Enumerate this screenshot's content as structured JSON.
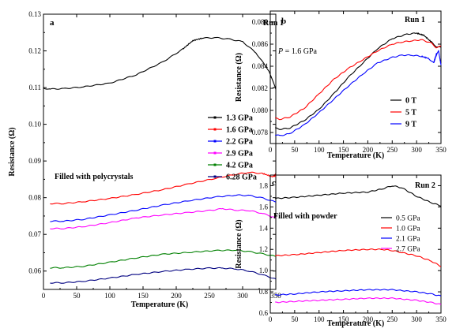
{
  "chart_data": [
    {
      "type": "line",
      "panel": "a",
      "run_label": "Run 1",
      "annotation": "Filled with polycrystals",
      "xlabel": "Temperature (K)",
      "ylabel": "Resistance (Ω)",
      "xlim": [
        0,
        350
      ],
      "ylim": [
        0.055,
        0.13
      ],
      "xticks": [
        0,
        50,
        100,
        150,
        200,
        250,
        300,
        350
      ],
      "yticks": [
        0.06,
        0.07,
        0.08,
        0.09,
        0.1,
        0.11,
        0.12,
        0.13
      ],
      "ytick_labels": [
        "0.06",
        "0.07",
        "0.08",
        "0.09",
        "0.10",
        "0.11",
        "0.12",
        "0.13"
      ],
      "legend_position": "right",
      "series": [
        {
          "name": "1.3 GPa",
          "color": "#000000",
          "x": [
            0,
            10,
            30,
            60,
            100,
            140,
            180,
            210,
            225,
            240,
            260,
            280,
            300,
            320,
            340,
            350
          ],
          "y": [
            0.1098,
            0.1096,
            0.1097,
            0.1102,
            0.1112,
            0.1135,
            0.117,
            0.1205,
            0.1228,
            0.1235,
            0.1236,
            0.1232,
            0.1225,
            0.1195,
            0.1145,
            0.1095
          ]
        },
        {
          "name": "1.6 GPa",
          "color": "#ff0000",
          "x": [
            10,
            30,
            60,
            100,
            140,
            180,
            220,
            260,
            290,
            310,
            330,
            345,
            350
          ],
          "y": [
            0.0784,
            0.0784,
            0.0789,
            0.0798,
            0.0809,
            0.0822,
            0.0838,
            0.0853,
            0.0864,
            0.0869,
            0.0866,
            0.0857,
            0.0862
          ]
        },
        {
          "name": "2.2 GPa",
          "color": "#0000ff",
          "x": [
            10,
            30,
            60,
            100,
            140,
            180,
            220,
            260,
            290,
            310,
            330,
            350
          ],
          "y": [
            0.0736,
            0.0736,
            0.0741,
            0.0753,
            0.0766,
            0.078,
            0.0792,
            0.0802,
            0.0807,
            0.0806,
            0.0799,
            0.0788
          ]
        },
        {
          "name": "2.9 GPa",
          "color": "#ff00ff",
          "x": [
            10,
            30,
            60,
            100,
            140,
            180,
            220,
            250,
            270,
            290,
            310,
            330,
            350
          ],
          "y": [
            0.0716,
            0.0716,
            0.0721,
            0.0732,
            0.0745,
            0.0753,
            0.076,
            0.0765,
            0.077,
            0.0766,
            0.0765,
            0.0757,
            0.0745
          ]
        },
        {
          "name": "4.2 GPa",
          "color": "#008000",
          "x": [
            10,
            30,
            60,
            100,
            140,
            180,
            220,
            260,
            290,
            310,
            330,
            350
          ],
          "y": [
            0.0609,
            0.0609,
            0.0613,
            0.0624,
            0.0636,
            0.0646,
            0.0651,
            0.0656,
            0.0657,
            0.0653,
            0.0647,
            0.064
          ]
        },
        {
          "name": "6.28 GPa",
          "color": "#000080",
          "x": [
            10,
            30,
            60,
            100,
            140,
            180,
            220,
            250,
            270,
            290,
            310,
            330,
            350
          ],
          "y": [
            0.0568,
            0.0568,
            0.0572,
            0.0581,
            0.0591,
            0.0599,
            0.0605,
            0.0608,
            0.0608,
            0.0606,
            0.06,
            0.059,
            0.0578
          ]
        }
      ]
    },
    {
      "type": "line",
      "panel": "b",
      "run_label": "Run 1",
      "annotation": "P = 1.6 GPa",
      "xlabel": "Temperature (K)",
      "ylabel": "Resistance (Ω)",
      "xlim": [
        0,
        350
      ],
      "ylim": [
        0.077,
        0.089
      ],
      "xticks": [
        0,
        50,
        100,
        150,
        200,
        250,
        300,
        350
      ],
      "yticks": [
        0.078,
        0.08,
        0.082,
        0.084,
        0.086,
        0.088
      ],
      "ytick_labels": [
        "0.078",
        "0.080",
        "0.082",
        "0.084",
        "0.086",
        "0.088"
      ],
      "legend_position": "bottom-right",
      "series": [
        {
          "name": "0 T",
          "color": "#000000",
          "x": [
            10,
            20,
            40,
            70,
            100,
            130,
            160,
            190,
            220,
            250,
            280,
            300,
            315,
            330,
            340,
            350
          ],
          "y": [
            0.0784,
            0.0783,
            0.0784,
            0.0791,
            0.0801,
            0.0815,
            0.083,
            0.0843,
            0.0856,
            0.0865,
            0.0869,
            0.087,
            0.0868,
            0.0862,
            0.0858,
            0.0857
          ]
        },
        {
          "name": "5 T",
          "color": "#ff0000",
          "x": [
            10,
            20,
            40,
            70,
            100,
            130,
            160,
            190,
            220,
            250,
            270,
            290,
            310,
            330,
            340,
            350
          ],
          "y": [
            0.0793,
            0.0792,
            0.0794,
            0.0802,
            0.0815,
            0.0828,
            0.0838,
            0.0846,
            0.0854,
            0.086,
            0.0862,
            0.0863,
            0.0864,
            0.0861,
            0.0857,
            0.0858
          ]
        },
        {
          "name": "9 T",
          "color": "#0000ff",
          "x": [
            10,
            20,
            40,
            70,
            100,
            130,
            160,
            190,
            220,
            250,
            270,
            290,
            310,
            325,
            335,
            340,
            345,
            350
          ],
          "y": [
            0.0778,
            0.0777,
            0.0779,
            0.0787,
            0.0798,
            0.081,
            0.0822,
            0.0833,
            0.0843,
            0.0848,
            0.085,
            0.085,
            0.0849,
            0.0847,
            0.0843,
            0.085,
            0.0854,
            0.0841
          ]
        }
      ]
    },
    {
      "type": "line",
      "panel": "c",
      "run_label": "Run 2",
      "annotation": "Filled with powder",
      "xlabel": "Temperature (K)",
      "ylabel": "Resistance (Ω)",
      "xlim": [
        0,
        350
      ],
      "ylim": [
        0.6,
        1.9
      ],
      "xticks": [
        0,
        50,
        100,
        150,
        200,
        250,
        300,
        350
      ],
      "yticks": [
        0.6,
        0.8,
        1.0,
        1.2,
        1.4,
        1.6,
        1.8
      ],
      "ytick_labels": [
        "0.6",
        "0.8",
        "1.0",
        "1.2",
        "1.4",
        "1.6",
        "1.8"
      ],
      "legend_position": "right",
      "series": [
        {
          "name": "0.5 GPa",
          "color": "#000000",
          "x": [
            10,
            50,
            100,
            150,
            200,
            230,
            250,
            270,
            300,
            330,
            350
          ],
          "y": [
            1.68,
            1.69,
            1.71,
            1.73,
            1.74,
            1.77,
            1.8,
            1.78,
            1.7,
            1.64,
            1.61
          ]
        },
        {
          "name": "1.0 GPa",
          "color": "#ff0000",
          "x": [
            10,
            50,
            100,
            150,
            200,
            230,
            250,
            270,
            300,
            330,
            350
          ],
          "y": [
            1.14,
            1.15,
            1.17,
            1.19,
            1.2,
            1.2,
            1.19,
            1.17,
            1.14,
            1.09,
            1.04
          ]
        },
        {
          "name": "2.1 GPa",
          "color": "#0000ff",
          "x": [
            10,
            50,
            100,
            150,
            200,
            250,
            300,
            330,
            350
          ],
          "y": [
            0.77,
            0.78,
            0.8,
            0.81,
            0.82,
            0.82,
            0.8,
            0.78,
            0.76
          ]
        },
        {
          "name": "2.7 GPa",
          "color": "#ff00ff",
          "x": [
            10,
            50,
            100,
            150,
            200,
            250,
            300,
            330,
            350
          ],
          "y": [
            0.7,
            0.71,
            0.72,
            0.73,
            0.74,
            0.74,
            0.72,
            0.7,
            0.68
          ]
        }
      ]
    }
  ]
}
